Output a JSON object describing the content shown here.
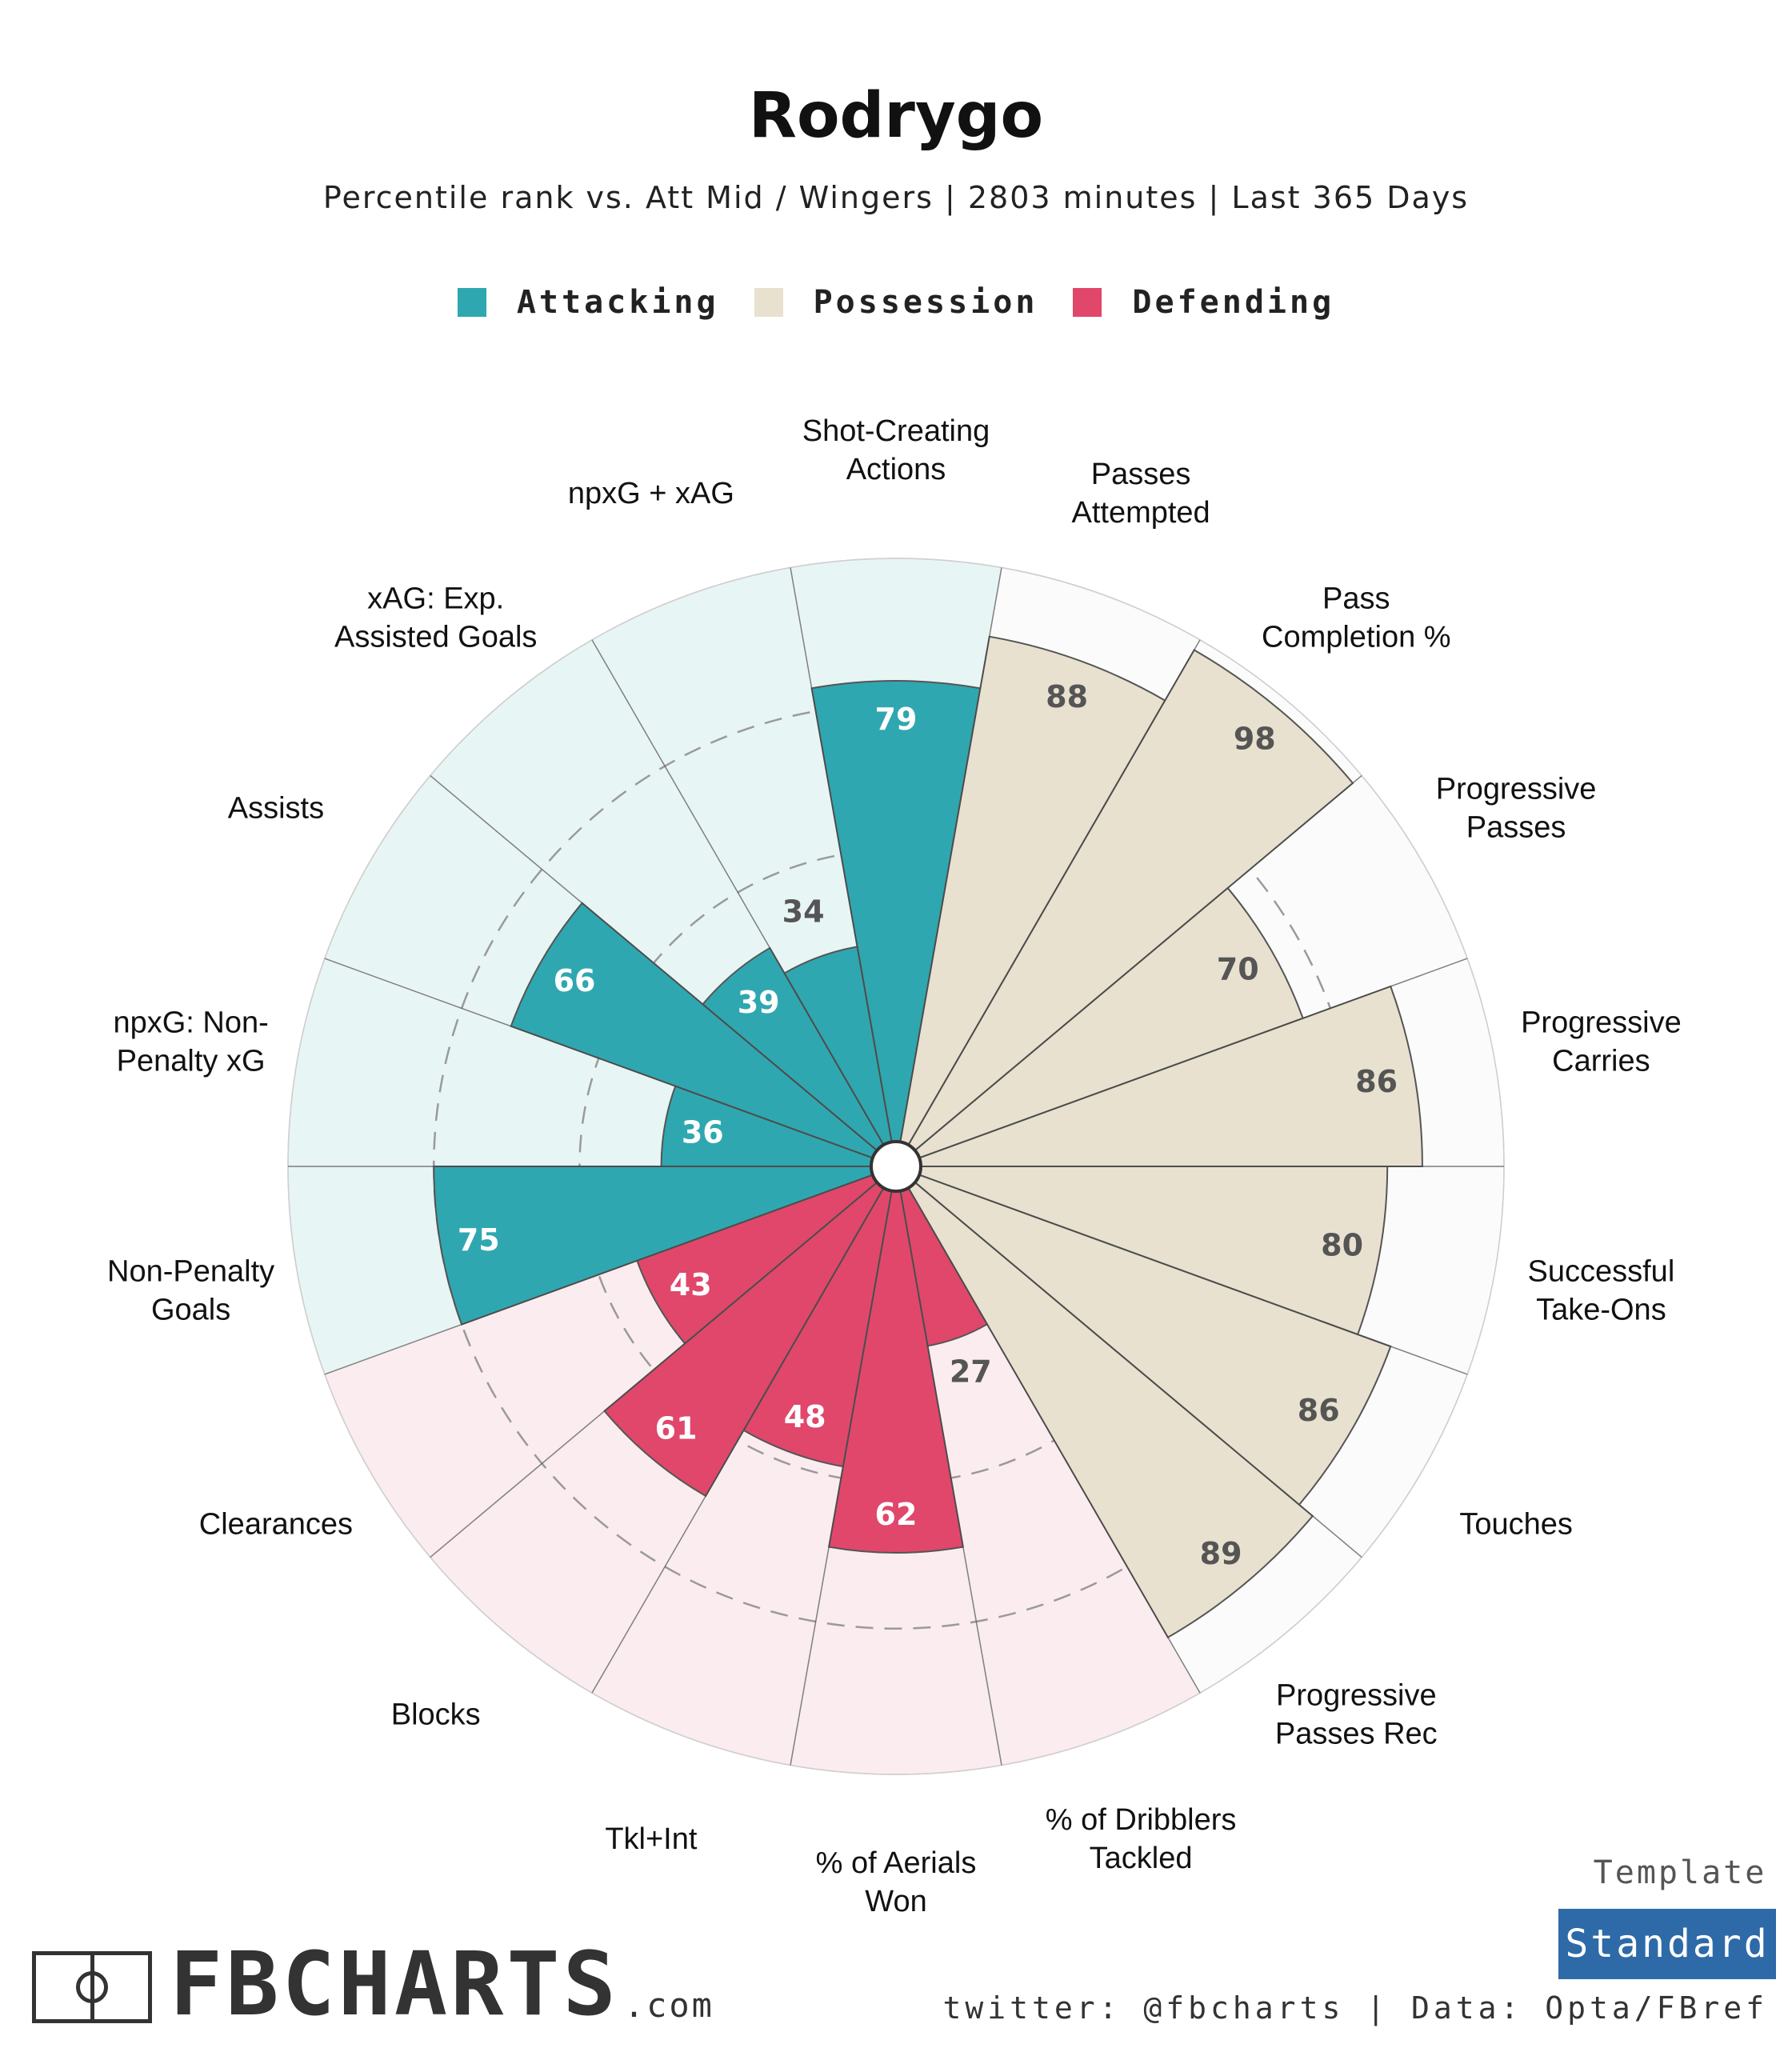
{
  "header": {
    "title": "Rodrygo",
    "subtitle": "Percentile rank vs. Att Mid / Wingers | 2803 minutes | Last 365 Days"
  },
  "legend": [
    {
      "label": "Attacking",
      "color": "#2fa7b0"
    },
    {
      "label": "Possession",
      "color": "#e8e1cf"
    },
    {
      "label": "Defending",
      "color": "#e0476b"
    }
  ],
  "chart_data": {
    "type": "pizza",
    "scale": [
      0,
      100
    ],
    "gridlines": [
      25,
      50,
      75
    ],
    "categories": [
      {
        "name": "Attacking",
        "color": "#2fa7b0",
        "bg": "#e8f5f5",
        "value_text_color": "#ffffff",
        "low_value_text_color": "#555555"
      },
      {
        "name": "Possession",
        "color": "#e8e1cf",
        "bg": "#fbfbfb",
        "value_text_color": "#555555",
        "low_value_text_color": "#555555"
      },
      {
        "name": "Defending",
        "color": "#e0476b",
        "bg": "#fbecef",
        "value_text_color": "#ffffff",
        "low_value_text_color": "#555555"
      }
    ],
    "metrics": [
      {
        "label": [
          "Shot-Creating",
          "Actions"
        ],
        "value": 79,
        "category": "Attacking"
      },
      {
        "label": [
          "Passes",
          "Attempted"
        ],
        "value": 88,
        "category": "Possession"
      },
      {
        "label": [
          "Pass",
          "Completion %"
        ],
        "value": 98,
        "category": "Possession"
      },
      {
        "label": [
          "Progressive",
          "Passes"
        ],
        "value": 70,
        "category": "Possession"
      },
      {
        "label": [
          "Progressive",
          "Carries"
        ],
        "value": 86,
        "category": "Possession"
      },
      {
        "label": [
          "Successful",
          "Take-Ons"
        ],
        "value": 80,
        "category": "Possession"
      },
      {
        "label": [
          "Touches"
        ],
        "value": 86,
        "category": "Possession"
      },
      {
        "label": [
          "Progressive",
          "Passes Rec"
        ],
        "value": 89,
        "category": "Possession"
      },
      {
        "label": [
          "% of Dribblers",
          "Tackled"
        ],
        "value": 27,
        "category": "Defending"
      },
      {
        "label": [
          "% of Aerials",
          "Won"
        ],
        "value": 62,
        "category": "Defending"
      },
      {
        "label": [
          "Tkl+Int"
        ],
        "value": 48,
        "category": "Defending"
      },
      {
        "label": [
          "Blocks"
        ],
        "value": 61,
        "category": "Defending"
      },
      {
        "label": [
          "Clearances"
        ],
        "value": 43,
        "category": "Defending"
      },
      {
        "label": [
          "Non-Penalty",
          "Goals"
        ],
        "value": 75,
        "category": "Attacking"
      },
      {
        "label": [
          "npxG: Non-",
          "Penalty xG"
        ],
        "value": 36,
        "category": "Attacking"
      },
      {
        "label": [
          "Assists"
        ],
        "value": 66,
        "category": "Attacking"
      },
      {
        "label": [
          "xAG: Exp.",
          "Assisted Goals"
        ],
        "value": 39,
        "category": "Attacking"
      },
      {
        "label": [
          "npxG + xAG"
        ],
        "value": 34,
        "category": "Attacking"
      }
    ]
  },
  "footer": {
    "template_label": "Template",
    "template_button": "Standard",
    "credit": "twitter: @fbcharts | Data: Opta/FBref",
    "logo_text": "FBCHARTS",
    "logo_suffix": ".com"
  }
}
